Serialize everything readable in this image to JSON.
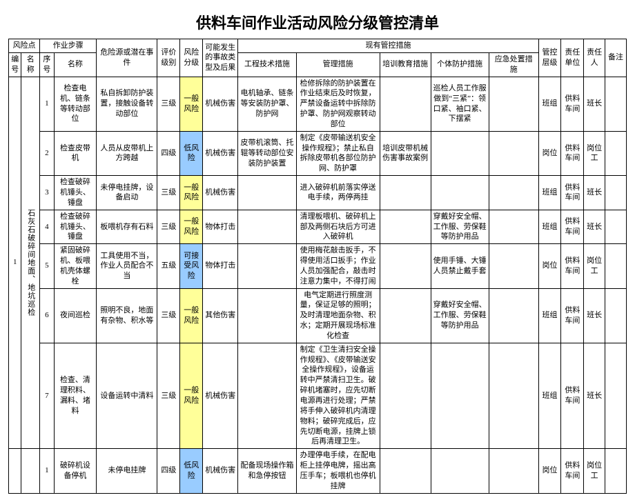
{
  "title": "供料车间作业活动风险分级管控清单",
  "colors": {
    "risk_low": "#99ccff",
    "risk_general": "#ffff99",
    "border": "#000000",
    "background": "#ffffff",
    "text": "#000000"
  },
  "header": {
    "riskPoint": "风险点",
    "workStep": "作业步骤",
    "riskPointNo": "编号",
    "riskPointName": "名称",
    "stepNo": "序号",
    "stepName": "名称",
    "hazard": "危险源或潜在事件",
    "evalLevel": "评价级别",
    "riskLevel": "风险分级",
    "accident": "可能发生的事故类型及后果",
    "controlGroup": "现有管控措施",
    "engineering": "工程技术措施",
    "management": "管理措施",
    "training": "培训教育措施",
    "ppe": "个体防护措施",
    "emergency": "应急处置措施",
    "tier": "管控层级",
    "unit": "责任单位",
    "person": "责任人",
    "remark": "备注"
  },
  "group1": {
    "no": "1",
    "name": "石灰石破碎间地面、地坑巡检",
    "rows": [
      {
        "stepNo": "1",
        "stepName": "检查电机、链条等转动部位",
        "hazard": "私自拆卸防护装置，接触设备转动部位",
        "evalLevel": "三级",
        "riskLevel": "一般风险",
        "riskClass": "risk-yellow",
        "accident": "机械伤害",
        "engineering": "电机轴承、链条等安装防护罩、防护网",
        "management": "检修拆除的防护装置在作业结束后及时恢复，严禁设备运转中拆除防护罩、防护网观察转动部位",
        "training": "",
        "ppe": "巡检人员工作服做到“三紧”：领口紧、袖口紧、下摆紧",
        "emergency": "",
        "tier": "班组",
        "unit": "供料车间",
        "person": "班长",
        "remark": ""
      },
      {
        "stepNo": "2",
        "stepName": "检查皮带机",
        "hazard": "人员从皮带机上方跨越",
        "evalLevel": "四级",
        "riskLevel": "低风险",
        "riskClass": "risk-blue",
        "accident": "机械伤害",
        "engineering": "皮带机滚筒、托辊等转动部位安装防护装置",
        "management": "制定《皮带输送机安全操作规程》；禁止私自拆除皮带机各部位防护网、防护罩",
        "training": "培训皮带机械伤害事故案例",
        "ppe": "",
        "emergency": "",
        "tier": "岗位",
        "unit": "供料车间",
        "person": "岗位工",
        "remark": ""
      },
      {
        "stepNo": "3",
        "stepName": "检查破碎机锤头、锤盘",
        "hazard": "未停电挂牌，设备启动",
        "evalLevel": "三级",
        "riskLevel": "一般风险",
        "riskClass": "risk-yellow",
        "accident": "机械伤害",
        "engineering": "",
        "management": "进入破碎机前落实停送电手续，两停两挂",
        "training": "",
        "ppe": "",
        "emergency": "",
        "tier": "班组",
        "unit": "供料车间",
        "person": "班长",
        "remark": ""
      },
      {
        "stepNo": "4",
        "stepName": "检查破碎机锤头、锤盘",
        "hazard": "板喂机存有石料",
        "evalLevel": "三级",
        "riskLevel": "一般风险",
        "riskClass": "risk-yellow",
        "accident": "物体打击",
        "engineering": "",
        "management": "清理板喂机、破碎机上部及两侧石块后方可进入破碎机",
        "training": "",
        "ppe": "穿戴好安全帽、工作服、劳保鞋等防护用品",
        "emergency": "",
        "tier": "班组",
        "unit": "供料车间",
        "person": "班长",
        "remark": ""
      },
      {
        "stepNo": "5",
        "stepName": "紧固破碎机、板喂机壳体螺栓",
        "hazard": "工具使用不当，作业人员配合不当",
        "evalLevel": "五级",
        "riskLevel": "可接受风险",
        "riskClass": "risk-blue",
        "accident": "物体打击",
        "engineering": "",
        "management": "使用梅花敲击扳手，不得使用活口扳手；作业人员加强配合，敲击时注意力集中，不得打闹",
        "training": "",
        "ppe": "使用手锤、大锤人员禁止戴手套",
        "emergency": "",
        "tier": "岗位",
        "unit": "供料车间",
        "person": "岗位工",
        "remark": ""
      },
      {
        "stepNo": "6",
        "stepName": "夜间巡检",
        "hazard": "照明不良，地面有杂物、积水等",
        "evalLevel": "三级",
        "riskLevel": "一般风险",
        "riskClass": "risk-yellow",
        "accident": "其他伤害",
        "engineering": "",
        "management": "电气定期进行照度测量，保证足够的照明；及时清理地面杂物、积水；定期开展现场标准化检查",
        "training": "",
        "ppe": "穿戴好安全帽、工作服、劳保鞋等防护用品",
        "emergency": "",
        "tier": "班组",
        "unit": "供料车间",
        "person": "班长",
        "remark": ""
      },
      {
        "stepNo": "7",
        "stepName": "检查、清理积料、漏料、堵料",
        "hazard": "设备运转中清料",
        "evalLevel": "三级",
        "riskLevel": "一般风险",
        "riskClass": "risk-yellow",
        "accident": "机械伤害",
        "engineering": "",
        "management": "制定《卫生清扫安全操作规程》、《皮带输送安全操作规程》，设备运转中严禁清扫卫生。破碎机堵塞时，应先切断电源再进行处理；严禁将手伸入破碎机内清理物料；破碎完成后，应先切断电源，挂牌上锁后再清理卫生。",
        "training": "",
        "ppe": "",
        "emergency": "",
        "tier": "班组",
        "unit": "供料车间",
        "person": "班长",
        "remark": ""
      }
    ]
  },
  "group2": {
    "no": "",
    "name": "",
    "rows": [
      {
        "stepNo": "1",
        "stepName": "破碎机设备停机",
        "hazard": "未停电挂牌",
        "evalLevel": "四级",
        "riskLevel": "低风险",
        "riskClass": "risk-blue",
        "accident": "机械伤害",
        "engineering": "配备现场操作箱和急停按钮",
        "management": "办理停电手续，在配电柜上挂停电牌，摇出高压手车；板喂机也停机挂牌",
        "training": "",
        "ppe": "",
        "emergency": "",
        "tier": "岗位",
        "unit": "供料车间",
        "person": "岗位工",
        "remark": ""
      }
    ]
  }
}
